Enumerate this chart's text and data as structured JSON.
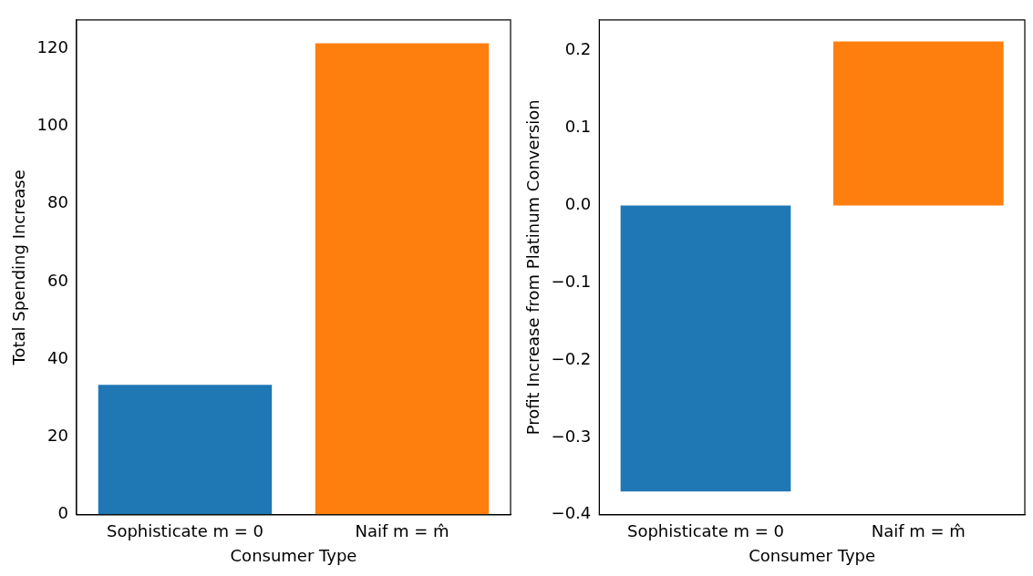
{
  "chart_data": [
    {
      "type": "bar",
      "categories": [
        "Sophisticate m = 0",
        "Naif m = m̂"
      ],
      "values": [
        33.4,
        121.3
      ],
      "colors": [
        "#1f77b4",
        "#ff7f0e"
      ],
      "xlabel": "Consumer Type",
      "ylabel": "Total Spending Increase",
      "ylim": [
        0,
        127.3
      ],
      "yticks": [
        0,
        20,
        40,
        60,
        80,
        100,
        120
      ]
    },
    {
      "type": "bar",
      "categories": [
        "Sophisticate m = 0",
        "Naif m = m̂"
      ],
      "values": [
        -0.37,
        0.212
      ],
      "colors": [
        "#1f77b4",
        "#ff7f0e"
      ],
      "xlabel": "Consumer Type",
      "ylabel": "Profit Increase from Platinum Conversion",
      "ylim": [
        -0.4,
        0.24
      ],
      "yticks": [
        {
          "value": -0.4,
          "label": "−0.4"
        },
        {
          "value": -0.3,
          "label": "−0.3"
        },
        {
          "value": -0.2,
          "label": "−0.2"
        },
        {
          "value": -0.1,
          "label": "−0.1"
        },
        {
          "value": 0,
          "label": "0.0"
        },
        {
          "value": 0.1,
          "label": "0.1"
        },
        {
          "value": 0.2,
          "label": "0.2"
        }
      ]
    }
  ]
}
